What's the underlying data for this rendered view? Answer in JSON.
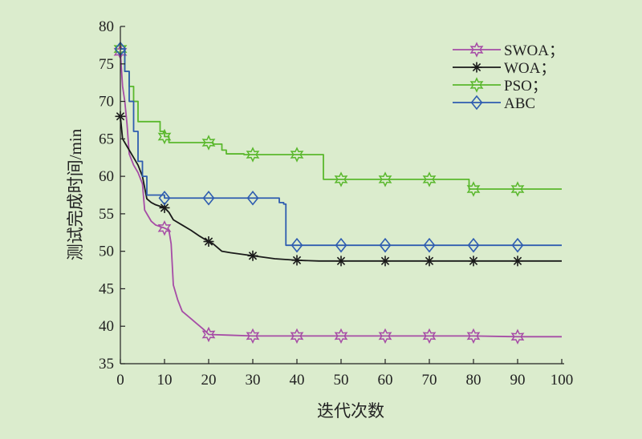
{
  "chart_data": {
    "type": "line",
    "title": "",
    "xlabel": "迭代次数",
    "ylabel": "测试完成时间/min",
    "xlim": [
      0,
      100
    ],
    "ylim": [
      35,
      80
    ],
    "xticks": [
      0,
      10,
      20,
      30,
      40,
      50,
      60,
      70,
      80,
      90,
      100
    ],
    "yticks": [
      35,
      40,
      45,
      50,
      55,
      60,
      65,
      70,
      75,
      80
    ],
    "grid": false,
    "legend_position": "top-right",
    "series": [
      {
        "name": "SWOA；",
        "color": "#a64ca6",
        "marker": "star",
        "step": false,
        "x": [
          0,
          0.5,
          1,
          1.5,
          2,
          3,
          4,
          5,
          5.5,
          6,
          7,
          8,
          9,
          10,
          11,
          11.5,
          12,
          13,
          14,
          15,
          16,
          17,
          18,
          19,
          20,
          25,
          30,
          35,
          40,
          50,
          60,
          70,
          80,
          90,
          100
        ],
        "y": [
          76.5,
          72,
          70,
          67,
          63,
          61.5,
          60.5,
          59,
          55.5,
          55,
          54,
          53.5,
          53.3,
          53.1,
          52.8,
          51,
          45.5,
          43.5,
          42,
          41.5,
          41,
          40.5,
          40,
          39.5,
          38.9,
          38.8,
          38.7,
          38.7,
          38.7,
          38.7,
          38.7,
          38.7,
          38.7,
          38.6,
          38.6
        ],
        "marker_x": [
          0,
          10,
          20,
          30,
          40,
          50,
          60,
          70,
          80,
          90
        ],
        "marker_y": [
          76.6,
          53.1,
          38.9,
          38.7,
          38.7,
          38.7,
          38.7,
          38.7,
          38.7,
          38.6
        ]
      },
      {
        "name": "WOA；",
        "color": "#1a1a1a",
        "marker": "asterisk",
        "step": false,
        "x": [
          0,
          0.5,
          1,
          2,
          3,
          4,
          5,
          6,
          7,
          8,
          9,
          10,
          11,
          12,
          14,
          16,
          18,
          20,
          21,
          23,
          25,
          30,
          35,
          40,
          45,
          50,
          60,
          70,
          80,
          90,
          100
        ],
        "y": [
          68,
          65,
          64.5,
          63.5,
          62.5,
          61.5,
          60,
          57,
          56.5,
          56.2,
          56,
          55.8,
          55.2,
          54.2,
          53.5,
          52.8,
          52,
          51.3,
          51,
          50,
          49.8,
          49.4,
          49,
          48.8,
          48.7,
          48.7,
          48.7,
          48.7,
          48.7,
          48.7,
          48.7
        ],
        "marker_x": [
          0,
          10,
          20,
          30,
          40,
          50,
          60,
          70,
          80,
          90
        ],
        "marker_y": [
          68,
          55.8,
          51.3,
          49.4,
          48.8,
          48.7,
          48.7,
          48.7,
          48.7,
          48.7
        ]
      },
      {
        "name": "PSO；",
        "color": "#5ab82d",
        "marker": "star",
        "step": true,
        "x": [
          0,
          1,
          2,
          3,
          4,
          8,
          9,
          10,
          11,
          20,
          21,
          22,
          23,
          24,
          28,
          45,
          46,
          78,
          79,
          100
        ],
        "y": [
          77,
          74,
          72,
          70,
          67.3,
          67.3,
          66,
          65.3,
          64.5,
          64.5,
          64.3,
          64.3,
          63.5,
          63,
          62.9,
          62.9,
          59.6,
          59.6,
          58.3,
          58.3
        ],
        "marker_x": [
          0,
          10,
          20,
          30,
          40,
          50,
          60,
          70,
          80,
          90
        ],
        "marker_y": [
          77,
          65.3,
          64.5,
          62.9,
          62.9,
          59.6,
          59.6,
          59.6,
          58.3,
          58.3
        ]
      },
      {
        "name": "ABC",
        "color": "#2f5db0",
        "marker": "diamond",
        "step": true,
        "x": [
          0,
          1,
          2,
          3,
          4,
          5,
          6,
          10,
          20,
          30,
          36,
          37,
          37.5,
          40,
          50,
          60,
          70,
          80,
          90,
          100
        ],
        "y": [
          77,
          74,
          70,
          66,
          62,
          60,
          57.5,
          57.1,
          57.1,
          57.1,
          56.5,
          56.3,
          50.8,
          50.8,
          50.8,
          50.8,
          50.8,
          50.8,
          50.8,
          50.8
        ],
        "marker_x": [
          0,
          10,
          20,
          30,
          40,
          50,
          60,
          70,
          80,
          90
        ],
        "marker_y": [
          77,
          57.1,
          57.1,
          57.1,
          50.8,
          50.8,
          50.8,
          50.8,
          50.8,
          50.8
        ]
      }
    ]
  }
}
